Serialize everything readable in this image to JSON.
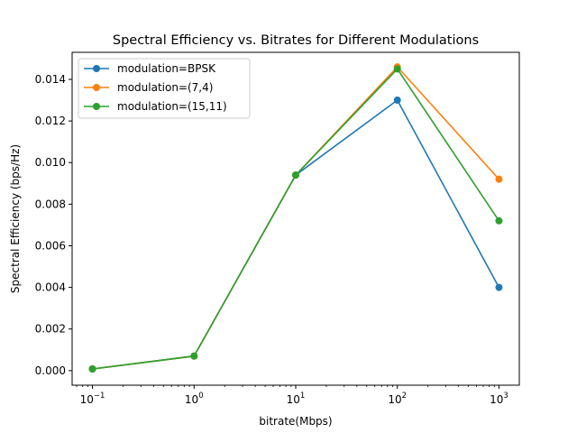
{
  "chart_data": {
    "type": "line",
    "title": "Spectral Efficiency vs. Bitrates for Different Modulations",
    "xlabel": "bitrate(Mbps)",
    "ylabel": "Spectral Efficiency (bps/Hz)",
    "xscale": "log",
    "x": [
      0.1,
      1,
      10,
      100,
      1000
    ],
    "xticks": [
      {
        "value": 0.1,
        "base": "10",
        "exp": "−1"
      },
      {
        "value": 1,
        "base": "10",
        "exp": "0"
      },
      {
        "value": 10,
        "base": "10",
        "exp": "1"
      },
      {
        "value": 100,
        "base": "10",
        "exp": "2"
      },
      {
        "value": 1000,
        "base": "10",
        "exp": "3"
      }
    ],
    "yticks": [
      "0.000",
      "0.002",
      "0.004",
      "0.006",
      "0.008",
      "0.010",
      "0.012",
      "0.014"
    ],
    "ylim": [
      -0.0007,
      0.0153
    ],
    "grid": false,
    "legend_position": "upper-left",
    "series": [
      {
        "name": "modulation=BPSK",
        "color": "#1f77b4",
        "values": [
          8e-05,
          0.0007,
          0.0094,
          0.013,
          0.004
        ]
      },
      {
        "name": "modulation=(7,4)",
        "color": "#ff7f0e",
        "values": [
          8e-05,
          0.0007,
          0.0094,
          0.0146,
          0.0092
        ]
      },
      {
        "name": "modulation=(15,11)",
        "color": "#2ca02c",
        "values": [
          8e-05,
          0.0007,
          0.0094,
          0.0145,
          0.0072
        ]
      }
    ]
  }
}
